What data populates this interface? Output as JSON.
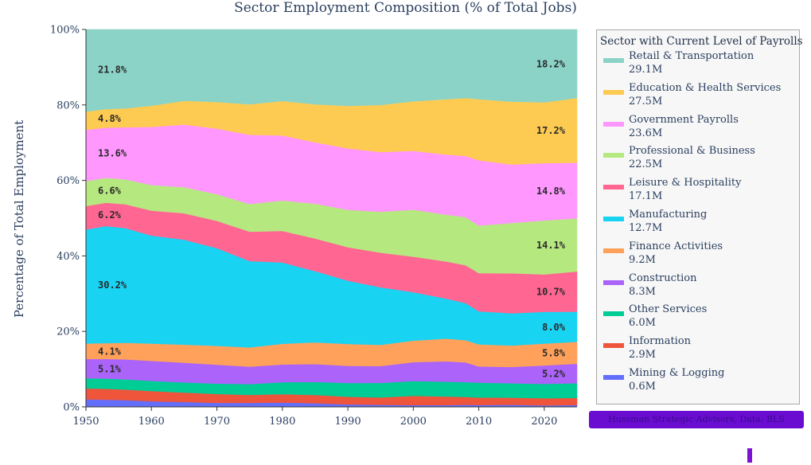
{
  "chart_data": {
    "type": "area",
    "title": "Sector Employment Composition (% of Total Jobs)",
    "xlabel": "",
    "ylabel": "Percentage of Total Employment",
    "xlim": [
      1950,
      2025
    ],
    "ylim": [
      0,
      100
    ],
    "xticks": [
      1950,
      1960,
      1970,
      1980,
      1990,
      2000,
      2010,
      2020
    ],
    "yticks": [
      0,
      20,
      40,
      60,
      80,
      100
    ],
    "ytick_labels": [
      "0%",
      "20%",
      "40%",
      "60%",
      "80%",
      "100%"
    ],
    "legend_title": "Sector with Current Level of Payrolls",
    "legend_position": "right",
    "x": [
      1950,
      1953,
      1956,
      1960,
      1965,
      1970,
      1975,
      1980,
      1985,
      1990,
      1995,
      2000,
      2005,
      2008,
      2010,
      2015,
      2020,
      2025
    ],
    "series": [
      {
        "name": "Mining & Logging",
        "current": "0.6M",
        "color": "#636efa",
        "values": [
          2.0,
          1.9,
          1.8,
          1.5,
          1.3,
          1.1,
          1.1,
          1.2,
          1.0,
          0.7,
          0.6,
          0.5,
          0.5,
          0.6,
          0.5,
          0.6,
          0.4,
          0.5
        ]
      },
      {
        "name": "Information",
        "current": "2.9M",
        "color": "#ef553b",
        "values": [
          2.9,
          2.9,
          2.8,
          2.7,
          2.5,
          2.4,
          2.2,
          2.3,
          2.3,
          2.1,
          2.0,
          2.5,
          2.3,
          2.1,
          2.0,
          1.9,
          1.9,
          1.9
        ]
      },
      {
        "name": "Other Services",
        "current": "6.0M",
        "color": "#00cc96",
        "values": [
          2.7,
          2.7,
          2.7,
          2.7,
          2.7,
          2.8,
          3.0,
          3.3,
          3.6,
          3.8,
          4.0,
          4.0,
          4.0,
          4.0,
          4.0,
          3.9,
          3.8,
          3.9
        ]
      },
      {
        "name": "Construction",
        "current": "8.3M",
        "color": "#ab63fa",
        "values": [
          5.1,
          5.2,
          5.3,
          5.3,
          5.2,
          5.1,
          4.8,
          4.9,
          4.9,
          4.7,
          4.6,
          5.1,
          5.5,
          5.3,
          4.3,
          4.4,
          4.9,
          5.2
        ]
      },
      {
        "name": "Finance Activities",
        "current": "9.2M",
        "color": "#ffa15a",
        "values": [
          4.1,
          4.2,
          4.4,
          4.6,
          4.8,
          5.1,
          5.3,
          5.7,
          6.0,
          6.0,
          5.8,
          5.8,
          6.1,
          6.0,
          5.9,
          5.8,
          5.8,
          5.8
        ]
      },
      {
        "name": "Manufacturing",
        "current": "12.7M",
        "color": "#19d3f3",
        "values": [
          30.2,
          31.0,
          30.4,
          28.6,
          27.8,
          26.4,
          23.8,
          22.4,
          19.6,
          17.4,
          15.8,
          13.1,
          10.8,
          10.0,
          8.8,
          8.7,
          8.4,
          8.0
        ]
      },
      {
        "name": "Leisure & Hospitality",
        "current": "17.1M",
        "color": "#ff6692",
        "values": [
          6.2,
          6.2,
          6.3,
          6.6,
          7.0,
          7.4,
          8.1,
          8.7,
          9.0,
          9.2,
          9.5,
          9.6,
          10.0,
          10.2,
          10.2,
          10.8,
          9.9,
          10.7
        ]
      },
      {
        "name": "Professional & Business",
        "current": "22.5M",
        "color": "#b6e880",
        "values": [
          6.6,
          6.6,
          6.6,
          6.8,
          6.9,
          7.2,
          7.6,
          8.4,
          9.6,
          10.3,
          11.2,
          12.7,
          12.6,
          13.0,
          12.7,
          13.6,
          14.3,
          14.1
        ]
      },
      {
        "name": "Government Payrolls",
        "current": "23.6M",
        "color": "#ff97ff",
        "values": [
          13.6,
          13.3,
          13.8,
          15.4,
          16.6,
          17.7,
          19.1,
          17.9,
          16.9,
          16.9,
          16.4,
          15.9,
          16.2,
          16.5,
          17.4,
          15.8,
          15.2,
          14.8
        ]
      },
      {
        "name": "Education & Health Services",
        "current": "27.5M",
        "color": "#fecb52",
        "values": [
          4.8,
          4.9,
          5.0,
          5.6,
          6.3,
          7.2,
          8.4,
          9.5,
          10.5,
          11.7,
          12.9,
          13.4,
          14.9,
          15.6,
          16.3,
          17.0,
          16.1,
          17.2
        ]
      },
      {
        "name": "Retail & Transportation",
        "current": "29.1M",
        "color": "#8bd3c7",
        "values": [
          21.8,
          21.1,
          20.9,
          20.2,
          18.9,
          19.6,
          20.6,
          19.7,
          20.6,
          21.0,
          20.7,
          19.4,
          18.8,
          18.5,
          18.6,
          19.5,
          19.3,
          18.2
        ]
      }
    ],
    "data_labels": [
      {
        "series": "Retail & Transportation",
        "side": "left",
        "text": "21.8%"
      },
      {
        "series": "Education & Health Services",
        "side": "left",
        "text": "4.8%"
      },
      {
        "series": "Government Payrolls",
        "side": "left",
        "text": "13.6%"
      },
      {
        "series": "Professional & Business",
        "side": "left",
        "text": "6.6%"
      },
      {
        "series": "Leisure & Hospitality",
        "side": "left",
        "text": "6.2%"
      },
      {
        "series": "Manufacturing",
        "side": "left",
        "text": "30.2%"
      },
      {
        "series": "Finance Activities",
        "side": "left",
        "text": "4.1%"
      },
      {
        "series": "Construction",
        "side": "left",
        "text": "5.1%"
      },
      {
        "series": "Retail & Transportation",
        "side": "right",
        "text": "18.2%"
      },
      {
        "series": "Education & Health Services",
        "side": "right",
        "text": "17.2%"
      },
      {
        "series": "Government Payrolls",
        "side": "right",
        "text": "14.8%"
      },
      {
        "series": "Professional & Business",
        "side": "right",
        "text": "14.1%"
      },
      {
        "series": "Leisure & Hospitality",
        "side": "right",
        "text": "10.7%"
      },
      {
        "series": "Manufacturing",
        "side": "right",
        "text": "8.0%"
      },
      {
        "series": "Finance Activities",
        "side": "right",
        "text": "5.8%"
      },
      {
        "series": "Construction",
        "side": "right",
        "text": "5.2%"
      }
    ]
  },
  "credit": {
    "text": "Hussman Strategic Advisors, Data: BLS",
    "color": "#6a0dd1"
  }
}
